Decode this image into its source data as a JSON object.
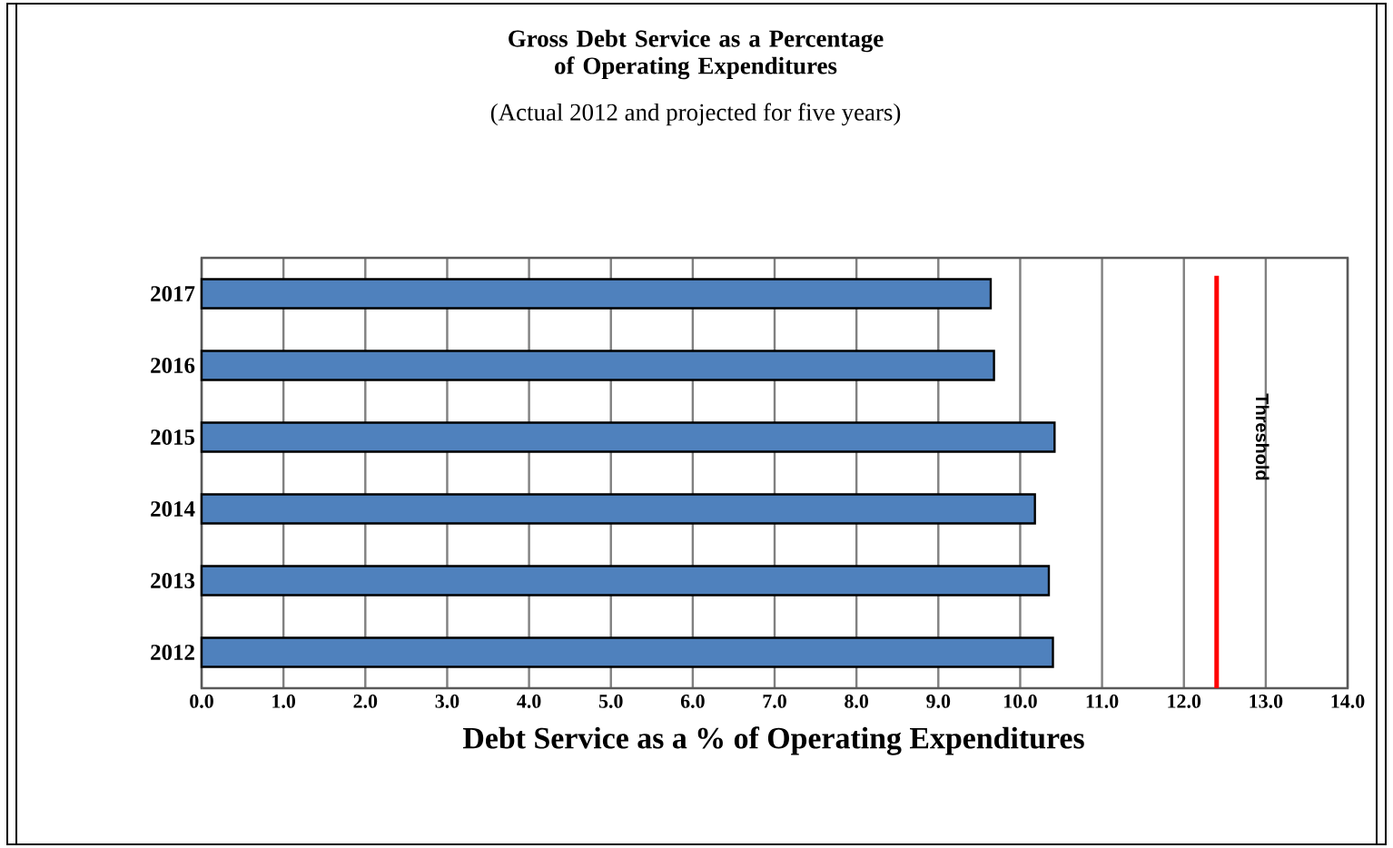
{
  "chart_data": {
    "type": "bar",
    "orientation": "horizontal",
    "title": "Gross Debt Service as a Percentage of Operating Expenditures",
    "subtitle": "(Actual 2012 and projected for five years)",
    "xlabel": "Debt Service as a % of Operating Expenditures",
    "categories": [
      "2017",
      "2016",
      "2015",
      "2014",
      "2013",
      "2012"
    ],
    "values": [
      9.64,
      9.68,
      10.42,
      10.18,
      10.35,
      10.4
    ],
    "color": "#4f81bd",
    "xlim": [
      0,
      14
    ],
    "xticks": [
      {
        "value": 0,
        "label": "0.0"
      },
      {
        "value": 1,
        "label": "1.0"
      },
      {
        "value": 2,
        "label": "2.0"
      },
      {
        "value": 3,
        "label": "3.0"
      },
      {
        "value": 4,
        "label": "4.0"
      },
      {
        "value": 5,
        "label": "5.0"
      },
      {
        "value": 6,
        "label": "6.0"
      },
      {
        "value": 7,
        "label": "7.0"
      },
      {
        "value": 8,
        "label": "8.0"
      },
      {
        "value": 9,
        "label": "9.0"
      },
      {
        "value": 10,
        "label": "10.0"
      },
      {
        "value": 11,
        "label": "11.0"
      },
      {
        "value": 12,
        "label": "12.0"
      },
      {
        "value": 13,
        "label": "13.0"
      },
      {
        "value": 14,
        "label": "14.0"
      }
    ],
    "ref_lines": [
      {
        "axis": "x",
        "value": 12.4,
        "label": "Threshold",
        "color": "#ff0000"
      }
    ],
    "grid": "x"
  }
}
